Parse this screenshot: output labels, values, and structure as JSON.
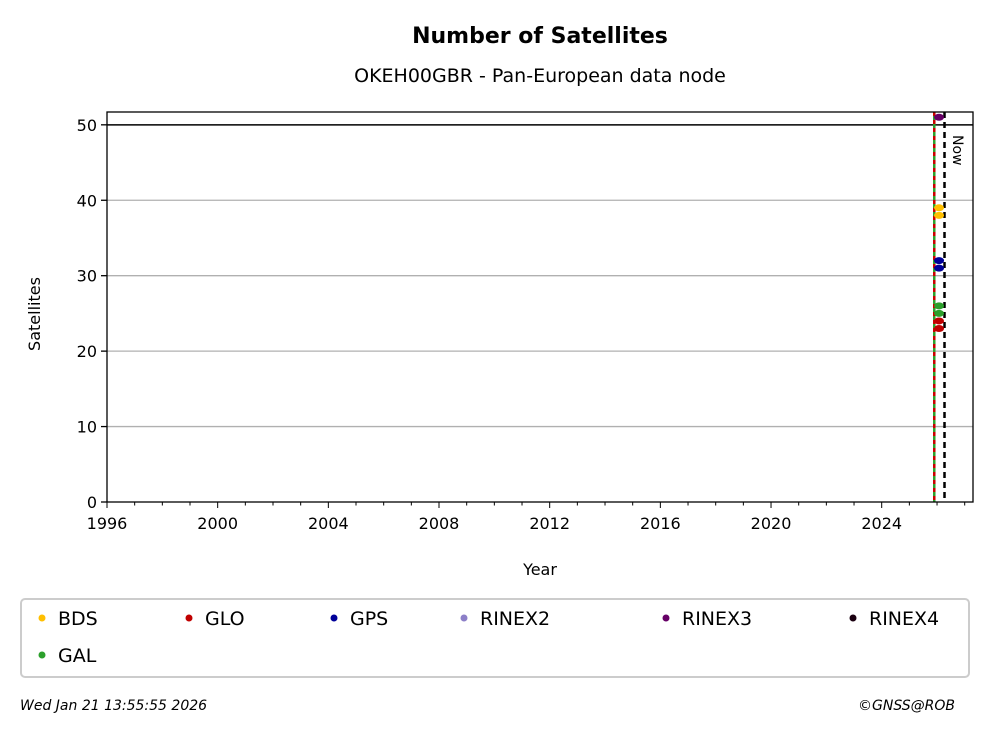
{
  "chart_data": {
    "type": "scatter",
    "title": "Number of Satellites",
    "subtitle": "OKEH00GBR - Pan-European data node",
    "xlabel": "Year",
    "ylabel": "Satellites",
    "xlim": [
      1996,
      2027.3
    ],
    "ylim": [
      0,
      51.7
    ],
    "xticks": [
      1996,
      2000,
      2004,
      2008,
      2012,
      2016,
      2020,
      2024
    ],
    "yticks": [
      0,
      10,
      20,
      30,
      40,
      50
    ],
    "grid": "horizontal",
    "max_line": 50,
    "now_label": "Now",
    "now_x": 2026.27,
    "marker_lines": [
      {
        "x": 2025.9,
        "colors": [
          "#cc0000",
          "#2ca02c"
        ]
      }
    ],
    "legend_placement": "bottom",
    "series": [
      {
        "name": "BDS",
        "color": "#ffbf00",
        "x": [
          2026.0,
          2026.0
        ],
        "y": [
          38,
          39
        ]
      },
      {
        "name": "GLO",
        "color": "#c00000",
        "x": [
          2026.0,
          2026.0
        ],
        "y": [
          23,
          24
        ]
      },
      {
        "name": "GPS",
        "color": "#000099",
        "x": [
          2026.0,
          2026.0
        ],
        "y": [
          31,
          32
        ]
      },
      {
        "name": "RINEX2",
        "color": "#8c7fc8",
        "x": [],
        "y": []
      },
      {
        "name": "RINEX3",
        "color": "#660066",
        "x": [
          2026.0
        ],
        "y": [
          51
        ]
      },
      {
        "name": "RINEX4",
        "color": "#1a0010",
        "x": [],
        "y": []
      },
      {
        "name": "GAL",
        "color": "#2ca02c",
        "x": [
          2026.0,
          2026.0
        ],
        "y": [
          25,
          26
        ]
      }
    ]
  },
  "footer": {
    "timestamp": "Wed Jan 21 13:55:55 2026",
    "credit": "©GNSS@ROB"
  }
}
